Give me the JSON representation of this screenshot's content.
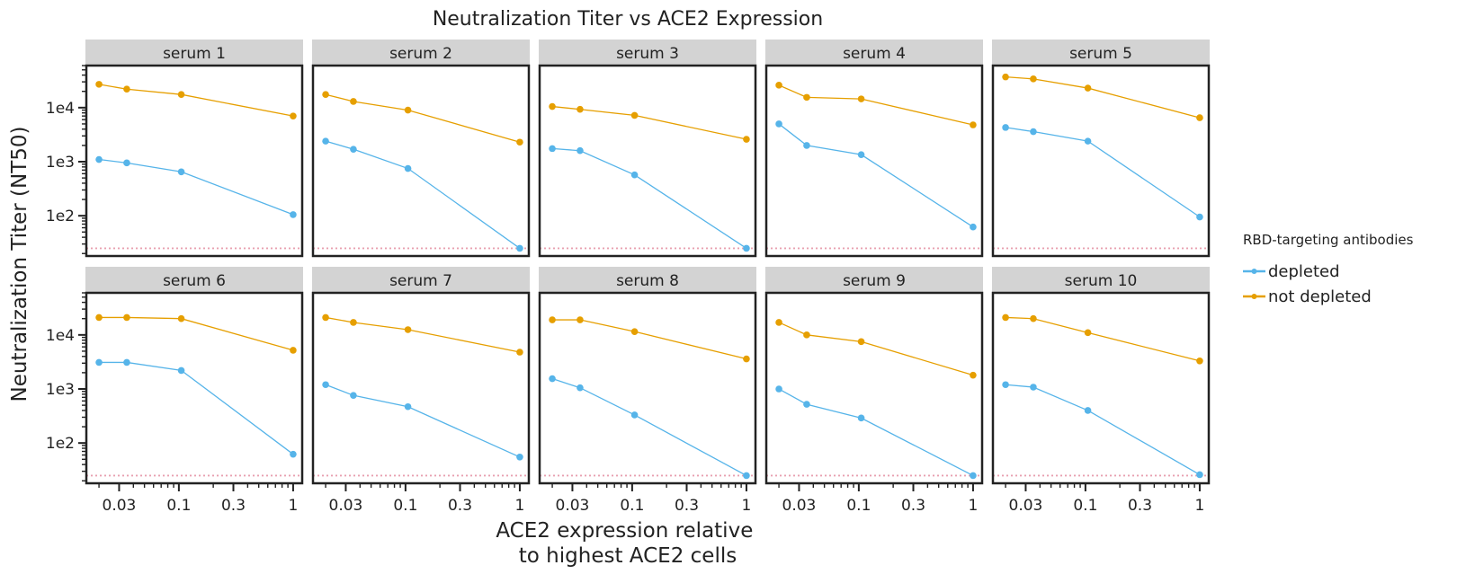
{
  "chart_data": {
    "type": "line",
    "title": "Neutralization Titer vs ACE2 Expression",
    "xlabel_lines": [
      "ACE2 expression relative",
      "to highest ACE2 cells"
    ],
    "ylabel": "Neutralization Titer (NT50)",
    "x_scale": "log",
    "y_scale": "log",
    "xlim": [
      0.0155,
      1.2
    ],
    "ylim": [
      18,
      60000
    ],
    "x_ticks": [
      {
        "value": 0.03,
        "label": "0.03"
      },
      {
        "value": 0.1,
        "label": "0.1"
      },
      {
        "value": 0.3,
        "label": "0.3"
      },
      {
        "value": 1,
        "label": "1"
      }
    ],
    "y_ticks": [
      {
        "value": 100,
        "label": "1e2"
      },
      {
        "value": 1000,
        "label": "1e3"
      },
      {
        "value": 10000,
        "label": "1e4"
      }
    ],
    "limit_of_detection": 25,
    "x": [
      0.02,
      0.035,
      0.105,
      1
    ],
    "legend": {
      "title": "RBD-targeting antibodies",
      "position": "right",
      "entries": [
        {
          "name": "depleted",
          "color": "#56b4e9"
        },
        {
          "name": "not depleted",
          "color": "#e69f00"
        }
      ]
    },
    "lod_color": "#e8a0b0",
    "facets": [
      {
        "label": "serum 1",
        "depleted": [
          1100,
          950,
          650,
          105
        ],
        "not_depleted": [
          27000,
          22000,
          17500,
          7000
        ]
      },
      {
        "label": "serum 2",
        "depleted": [
          2400,
          1700,
          750,
          25
        ],
        "not_depleted": [
          17500,
          13000,
          9000,
          2300
        ]
      },
      {
        "label": "serum 3",
        "depleted": [
          1750,
          1600,
          570,
          25
        ],
        "not_depleted": [
          10500,
          9300,
          7200,
          2600
        ]
      },
      {
        "label": "serum 4",
        "depleted": [
          5000,
          2000,
          1350,
          62
        ],
        "not_depleted": [
          26000,
          15500,
          14500,
          4800
        ]
      },
      {
        "label": "serum 5",
        "depleted": [
          4300,
          3600,
          2400,
          95
        ],
        "not_depleted": [
          37000,
          34000,
          23000,
          6500
        ]
      },
      {
        "label": "serum 6",
        "depleted": [
          3100,
          3100,
          2200,
          62
        ],
        "not_depleted": [
          21000,
          21000,
          20000,
          5200
        ]
      },
      {
        "label": "serum 7",
        "depleted": [
          1200,
          760,
          470,
          55
        ],
        "not_depleted": [
          21000,
          17000,
          12500,
          4800
        ]
      },
      {
        "label": "serum 8",
        "depleted": [
          1550,
          1050,
          330,
          25
        ],
        "not_depleted": [
          19000,
          19000,
          11500,
          3600
        ]
      },
      {
        "label": "serum 9",
        "depleted": [
          1000,
          520,
          290,
          25
        ],
        "not_depleted": [
          17000,
          10000,
          7500,
          1800
        ]
      },
      {
        "label": "serum 10",
        "depleted": [
          1200,
          1080,
          400,
          26
        ],
        "not_depleted": [
          21000,
          20000,
          11000,
          3300
        ]
      }
    ]
  }
}
